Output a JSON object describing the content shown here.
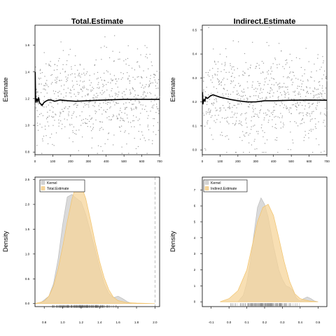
{
  "colors": {
    "points": "#9a9a9a",
    "running_line": "#000000",
    "kernel_fill": "#d3d3d3",
    "kernel_stroke": "#bdbdbd",
    "estimate_fill": "#f5d49a",
    "estimate_stroke": "#f2c36b",
    "vline": "#b0b0b0"
  },
  "chart_data": [
    {
      "type": "scatter",
      "title": "Total.Estimate",
      "xlabel": "",
      "ylabel": "Estimate",
      "n_points": 700,
      "xlim": [
        0,
        700
      ],
      "ylim": [
        0.78,
        1.75
      ],
      "x_ticks": [
        0,
        100,
        200,
        300,
        400,
        500,
        600,
        700
      ],
      "y_ticks": [
        0.8,
        1.0,
        1.2,
        1.4,
        1.6
      ],
      "y_tick_labels": [
        "0.8",
        "1.0",
        "1.2",
        "1.4",
        "1.6"
      ],
      "point_center": 1.2,
      "point_spread": 0.17,
      "running_mean": [
        [
          1,
          1.4
        ],
        [
          3,
          1.22
        ],
        [
          6,
          1.17
        ],
        [
          10,
          1.2
        ],
        [
          15,
          1.18
        ],
        [
          20,
          1.21
        ],
        [
          25,
          1.17
        ],
        [
          32,
          1.16
        ],
        [
          40,
          1.15
        ],
        [
          50,
          1.17
        ],
        [
          60,
          1.18
        ],
        [
          75,
          1.19
        ],
        [
          90,
          1.19
        ],
        [
          110,
          1.18
        ],
        [
          140,
          1.19
        ],
        [
          180,
          1.185
        ],
        [
          230,
          1.18
        ],
        [
          300,
          1.185
        ],
        [
          400,
          1.19
        ],
        [
          500,
          1.195
        ],
        [
          600,
          1.195
        ],
        [
          700,
          1.195
        ]
      ]
    },
    {
      "type": "scatter",
      "title": "Indirect.Estimate",
      "xlabel": "",
      "ylabel": "Estimate",
      "n_points": 700,
      "xlim": [
        0,
        700
      ],
      "ylim": [
        -0.02,
        0.52
      ],
      "x_ticks": [
        0,
        100,
        200,
        300,
        400,
        500,
        600,
        700
      ],
      "y_ticks": [
        0.0,
        0.1,
        0.2,
        0.3,
        0.4,
        0.5
      ],
      "y_tick_labels": [
        "0.0",
        "0.1",
        "0.2",
        "0.3",
        "0.4",
        "0.5"
      ],
      "point_center": 0.21,
      "point_spread": 0.1,
      "running_mean": [
        [
          1,
          0.24
        ],
        [
          3,
          0.19
        ],
        [
          6,
          0.2
        ],
        [
          10,
          0.21
        ],
        [
          15,
          0.205
        ],
        [
          20,
          0.22
        ],
        [
          30,
          0.215
        ],
        [
          45,
          0.225
        ],
        [
          60,
          0.23
        ],
        [
          80,
          0.225
        ],
        [
          100,
          0.22
        ],
        [
          130,
          0.215
        ],
        [
          160,
          0.21
        ],
        [
          200,
          0.205
        ],
        [
          250,
          0.2
        ],
        [
          300,
          0.2
        ],
        [
          350,
          0.205
        ],
        [
          400,
          0.205
        ],
        [
          500,
          0.207
        ],
        [
          600,
          0.208
        ],
        [
          700,
          0.207
        ]
      ]
    },
    {
      "type": "area",
      "title": "",
      "xlabel": "",
      "ylabel": "Density",
      "xlim": [
        0.7,
        2.05
      ],
      "ylim": [
        -0.06,
        2.55
      ],
      "x_ticks": [
        0.8,
        1.0,
        1.2,
        1.4,
        1.6,
        1.8,
        2.0
      ],
      "x_tick_labels": [
        "0.8",
        "1.0",
        "1.2",
        "1.4",
        "1.6",
        "1.8",
        "2.0"
      ],
      "y_ticks": [
        0.0,
        0.5,
        1.0,
        1.5,
        2.0,
        2.5
      ],
      "y_tick_labels": [
        "0.0",
        "0.5",
        "1.0",
        "1.5",
        "2.0",
        "2.5"
      ],
      "legend": {
        "position": "top-left",
        "entries": [
          "Kernel",
          "Total.Estimate"
        ]
      },
      "vline_x": 2.0,
      "rug_range": [
        0.85,
        1.72
      ],
      "rug_center": 1.2,
      "rug_spread": 0.16,
      "series": [
        {
          "name": "Kernel",
          "x": [
            0.75,
            0.85,
            0.9,
            0.95,
            1.0,
            1.05,
            1.1,
            1.15,
            1.2,
            1.25,
            1.3,
            1.35,
            1.4,
            1.45,
            1.5,
            1.55,
            1.6,
            1.65,
            1.7,
            1.75
          ],
          "y": [
            0.0,
            0.15,
            0.4,
            0.9,
            1.6,
            2.15,
            2.2,
            2.12,
            2.05,
            1.8,
            1.45,
            1.1,
            0.72,
            0.4,
            0.2,
            0.12,
            0.15,
            0.1,
            0.04,
            0.0
          ]
        },
        {
          "name": "Total.Estimate",
          "x": [
            0.7,
            0.8,
            0.85,
            0.9,
            0.95,
            1.0,
            1.05,
            1.1,
            1.15,
            1.2,
            1.25,
            1.3,
            1.35,
            1.4,
            1.45,
            1.5,
            1.55,
            1.6,
            1.7,
            1.8,
            1.9,
            2.0
          ],
          "y": [
            0.0,
            0.05,
            0.15,
            0.35,
            0.7,
            1.15,
            1.65,
            2.1,
            2.42,
            2.38,
            2.12,
            1.7,
            1.25,
            0.85,
            0.52,
            0.28,
            0.13,
            0.06,
            0.02,
            0.01,
            0.005,
            0.0
          ]
        }
      ]
    },
    {
      "type": "area",
      "title": "",
      "xlabel": "",
      "ylabel": "Density",
      "xlim": [
        -0.15,
        0.55
      ],
      "ylim": [
        -0.3,
        7.8
      ],
      "x_ticks": [
        -0.1,
        0.0,
        0.1,
        0.2,
        0.3,
        0.4,
        0.5
      ],
      "x_tick_labels": [
        "-0.1",
        "0.0",
        "0.1",
        "0.2",
        "0.3",
        "0.4",
        "0.5"
      ],
      "y_ticks": [
        0,
        1,
        2,
        3,
        4,
        5,
        6,
        7
      ],
      "y_tick_labels": [
        "0",
        "1",
        "2",
        "3",
        "4",
        "5",
        "6",
        "7"
      ],
      "legend": {
        "position": "top-left",
        "entries": [
          "Kernel",
          "Indirect.Estimate"
        ]
      },
      "rug_range": [
        0.0,
        0.48
      ],
      "rug_center": 0.2,
      "rug_spread": 0.085,
      "series": [
        {
          "name": "Kernel",
          "x": [
            0.05,
            0.08,
            0.1,
            0.12,
            0.14,
            0.16,
            0.18,
            0.2,
            0.22,
            0.25,
            0.28,
            0.3,
            0.32,
            0.34,
            0.36,
            0.38,
            0.4,
            0.42,
            0.44,
            0.46,
            0.48,
            0.5
          ],
          "y": [
            0.0,
            0.4,
            1.2,
            2.5,
            4.2,
            5.9,
            6.5,
            6.1,
            5.3,
            3.5,
            2.0,
            1.4,
            1.0,
            0.9,
            0.7,
            0.2,
            0.05,
            0.2,
            0.3,
            0.2,
            0.05,
            0.0
          ]
        },
        {
          "name": "Indirect.Estimate",
          "x": [
            -0.05,
            0.0,
            0.05,
            0.1,
            0.13,
            0.16,
            0.19,
            0.22,
            0.25,
            0.28,
            0.31,
            0.34,
            0.37,
            0.4,
            0.45,
            0.5
          ],
          "y": [
            0.0,
            0.2,
            0.7,
            2.0,
            3.5,
            5.0,
            5.9,
            6.1,
            5.4,
            4.0,
            2.5,
            1.3,
            0.5,
            0.2,
            0.05,
            0.0
          ]
        }
      ]
    }
  ]
}
